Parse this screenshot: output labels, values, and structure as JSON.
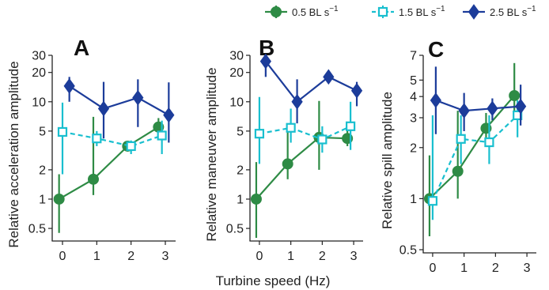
{
  "colors": {
    "green": "#2e8b45",
    "cyan": "#19bfcf",
    "navy": "#1c3c9a"
  },
  "legend": [
    {
      "key": "green",
      "text": "0.5 BL s",
      "sup": "−1",
      "marker": "circle",
      "dash": false
    },
    {
      "key": "cyan",
      "text": "1.5 BL s",
      "sup": "−1",
      "marker": "open-square",
      "dash": true
    },
    {
      "key": "navy",
      "text": "2.5 BL s",
      "sup": "−1",
      "marker": "diamond",
      "dash": false
    }
  ],
  "xlabel": "Turbine speed (Hz)",
  "chart_data": [
    {
      "type": "line",
      "panel": "A",
      "ylabel": "Relative acceleration amplitude",
      "yscale": "log",
      "ylim": [
        0.4,
        30
      ],
      "yticks": [
        0.5,
        1,
        2,
        5,
        10,
        20,
        30
      ],
      "ytick_labels": [
        "0.5",
        "1",
        "2",
        "5",
        "10",
        "20",
        "30"
      ],
      "xlim": [
        -0.3,
        3.3
      ],
      "xticks": [
        0,
        1,
        2,
        3
      ],
      "series": [
        {
          "name": "0.5 BL s−1",
          "color_key": "green",
          "marker": "circle",
          "x": [
            -0.1,
            0.9,
            1.9,
            2.8
          ],
          "y": [
            1.0,
            1.6,
            3.5,
            5.5
          ],
          "lo": [
            0.45,
            1.1,
            3.1,
            4.3
          ],
          "hi": [
            1.8,
            7.0,
            3.8,
            6.8
          ]
        },
        {
          "name": "1.5 BL s−1",
          "color_key": "cyan",
          "marker": "open-square",
          "x": [
            0.0,
            1.0,
            2.0,
            2.9
          ],
          "y": [
            4.9,
            4.2,
            3.5,
            4.5
          ],
          "lo": [
            1.8,
            3.5,
            2.9,
            2.9
          ],
          "hi": [
            9.8,
            5.0,
            4.0,
            6.4
          ]
        },
        {
          "name": "2.5 BL s−1",
          "color_key": "navy",
          "marker": "diamond",
          "x": [
            0.2,
            1.2,
            2.2,
            3.1
          ],
          "y": [
            14.5,
            8.5,
            11.0,
            7.3
          ],
          "lo": [
            10.0,
            4.2,
            5.5,
            3.8
          ],
          "hi": [
            18.0,
            16.0,
            17.0,
            15.8
          ]
        }
      ]
    },
    {
      "type": "line",
      "panel": "B",
      "ylabel": "Relative maneuver amplitude",
      "yscale": "log",
      "ylim": [
        0.4,
        30
      ],
      "yticks": [
        0.5,
        1,
        2,
        5,
        10,
        20,
        30
      ],
      "ytick_labels": [
        "0.5",
        "1",
        "2",
        "5",
        "10",
        "20",
        "30"
      ],
      "xlim": [
        -0.3,
        3.3
      ],
      "xticks": [
        0,
        1,
        2,
        3
      ],
      "series": [
        {
          "name": "0.5 BL s−1",
          "color_key": "green",
          "marker": "circle",
          "x": [
            -0.1,
            0.9,
            1.9,
            2.8
          ],
          "y": [
            1.0,
            2.3,
            4.3,
            4.2
          ],
          "lo": [
            0.4,
            1.6,
            2.0,
            3.5
          ],
          "hi": [
            2.4,
            5.0,
            10.2,
            5.6
          ]
        },
        {
          "name": "1.5 BL s−1",
          "color_key": "cyan",
          "marker": "open-square",
          "x": [
            0.0,
            1.0,
            2.0,
            2.9
          ],
          "y": [
            4.7,
            5.4,
            4.1,
            5.6
          ],
          "lo": [
            2.3,
            3.8,
            3.0,
            3.2
          ],
          "hi": [
            11.2,
            8.5,
            5.6,
            10.0
          ]
        },
        {
          "name": "2.5 BL s−1",
          "color_key": "navy",
          "marker": "diamond",
          "x": [
            0.2,
            1.2,
            2.2,
            3.1
          ],
          "y": [
            26.0,
            10.0,
            18.0,
            13.0
          ],
          "lo": [
            18.0,
            6.0,
            16.5,
            9.0
          ],
          "hi": [
            29.0,
            17.0,
            20.0,
            16.0
          ]
        }
      ]
    },
    {
      "type": "line",
      "panel": "C",
      "ylabel": "Relative spill amplitude",
      "yscale": "log",
      "ylim": [
        0.5,
        7
      ],
      "yticks": [
        0.5,
        1,
        2,
        3,
        4,
        5,
        7
      ],
      "ytick_labels": [
        "0.5",
        "1",
        "2",
        "3",
        "4",
        "5",
        "7"
      ],
      "xlim": [
        -0.3,
        3.3
      ],
      "xticks": [
        0,
        1,
        2,
        3
      ],
      "series": [
        {
          "name": "0.5 BL s−1",
          "color_key": "green",
          "marker": "circle",
          "x": [
            -0.1,
            0.8,
            1.7,
            2.6
          ],
          "y": [
            1.0,
            1.45,
            2.6,
            4.05
          ],
          "lo": [
            0.6,
            1.0,
            2.1,
            3.2
          ],
          "hi": [
            1.8,
            3.3,
            3.2,
            6.3
          ]
        },
        {
          "name": "1.5 BL s−1",
          "color_key": "cyan",
          "marker": "open-square",
          "x": [
            0.0,
            0.9,
            1.8,
            2.7
          ],
          "y": [
            0.97,
            2.25,
            2.15,
            3.1
          ],
          "lo": [
            0.75,
            1.6,
            1.6,
            2.3
          ],
          "hi": [
            3.1,
            3.1,
            3.1,
            3.8
          ]
        },
        {
          "name": "2.5 BL s−1",
          "color_key": "navy",
          "marker": "diamond",
          "x": [
            0.1,
            1.0,
            1.9,
            2.8
          ],
          "y": [
            3.8,
            3.3,
            3.4,
            3.5
          ],
          "lo": [
            2.4,
            2.5,
            2.9,
            2.7
          ],
          "hi": [
            6.0,
            4.2,
            3.9,
            4.7
          ]
        }
      ]
    }
  ]
}
